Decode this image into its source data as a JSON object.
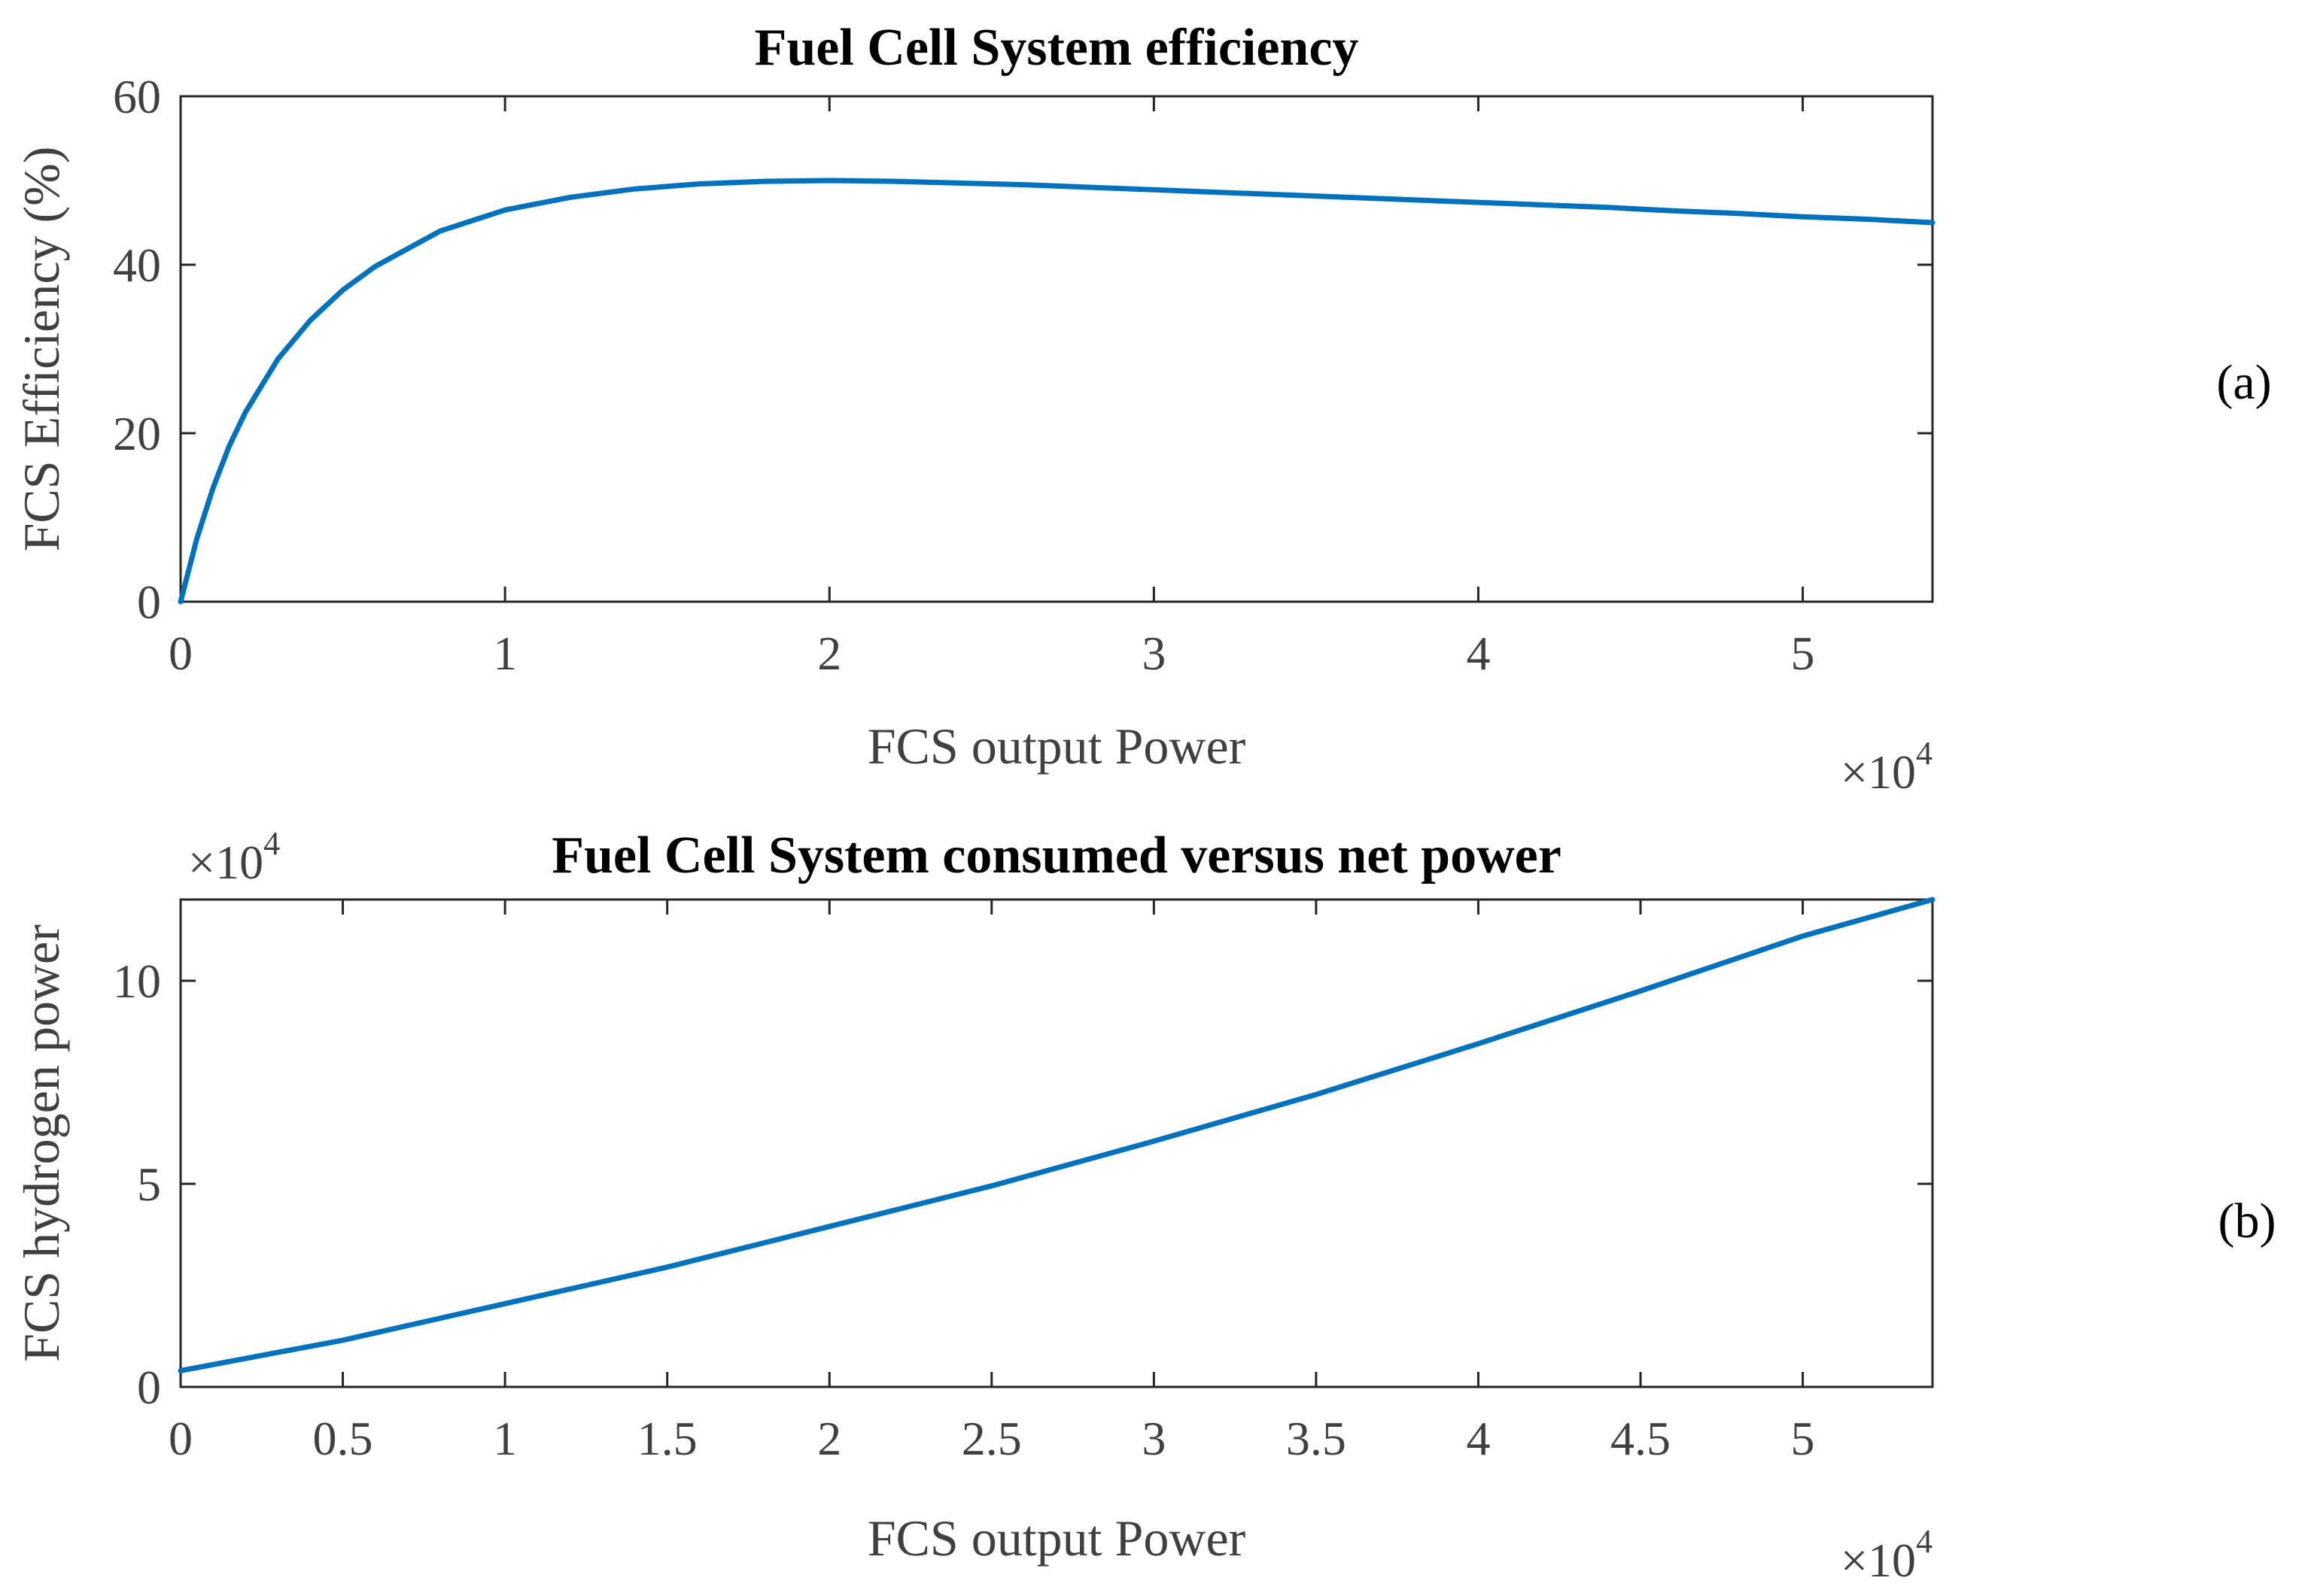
{
  "chart_data": [
    {
      "type": "line",
      "panel_label": "(a)",
      "title": "Fuel Cell System efficiency",
      "xlabel": "FCS output Power",
      "ylabel": "FCS Efficiency (%)",
      "x_multiplier_base": "×10",
      "x_multiplier_exp": "4",
      "xlim": [
        0,
        54000
      ],
      "ylim": [
        0,
        60
      ],
      "xticks": [
        0,
        10000,
        20000,
        30000,
        40000,
        50000
      ],
      "xtick_labels": [
        "0",
        "1",
        "2",
        "3",
        "4",
        "5"
      ],
      "yticks": [
        0,
        20,
        40,
        60
      ],
      "ytick_labels": [
        "0",
        "20",
        "40",
        "60"
      ],
      "grid": false,
      "color": "#0072BD",
      "series": [
        {
          "x": [
            0,
            500,
            1000,
            1500,
            2000,
            3000,
            4000,
            5000,
            6000,
            8000,
            10000,
            12000,
            14000,
            16000,
            18000,
            20000,
            22000,
            24000,
            26000,
            28000,
            30000,
            32000,
            34000,
            36000,
            38000,
            40000,
            42000,
            44000,
            46000,
            48000,
            50000,
            52000,
            54000
          ],
          "y": [
            0,
            7.5,
            13.5,
            18.5,
            22.5,
            28.8,
            33.4,
            37.0,
            39.8,
            44.0,
            46.5,
            48.0,
            49.0,
            49.6,
            49.9,
            50.0,
            49.9,
            49.7,
            49.5,
            49.2,
            48.9,
            48.6,
            48.3,
            48.0,
            47.7,
            47.4,
            47.1,
            46.8,
            46.4,
            46.1,
            45.7,
            45.4,
            45.0
          ]
        }
      ]
    },
    {
      "type": "line",
      "panel_label": "(b)",
      "title": "Fuel Cell System consumed versus net power",
      "xlabel": "FCS output Power",
      "ylabel": "FCS hydrogen power",
      "x_multiplier_base": "×10",
      "x_multiplier_exp": "4",
      "y_multiplier_base": "×10",
      "y_multiplier_exp": "4",
      "xlim": [
        0,
        54000
      ],
      "ylim": [
        0,
        120000
      ],
      "xticks": [
        0,
        5000,
        10000,
        15000,
        20000,
        25000,
        30000,
        35000,
        40000,
        45000,
        50000
      ],
      "xtick_labels": [
        "0",
        "0.5",
        "1",
        "1.5",
        "2",
        "2.5",
        "3",
        "3.5",
        "4",
        "4.5",
        "5"
      ],
      "yticks": [
        0,
        50000,
        100000
      ],
      "ytick_labels": [
        "0",
        "5",
        "10"
      ],
      "grid": false,
      "color": "#0072BD",
      "series": [
        {
          "x": [
            0,
            5000,
            10000,
            15000,
            20000,
            25000,
            30000,
            35000,
            40000,
            45000,
            50000,
            54000
          ],
          "y": [
            4000,
            11500,
            20500,
            29500,
            39500,
            49500,
            60500,
            72000,
            84500,
            97500,
            111000,
            120000
          ]
        }
      ]
    }
  ]
}
